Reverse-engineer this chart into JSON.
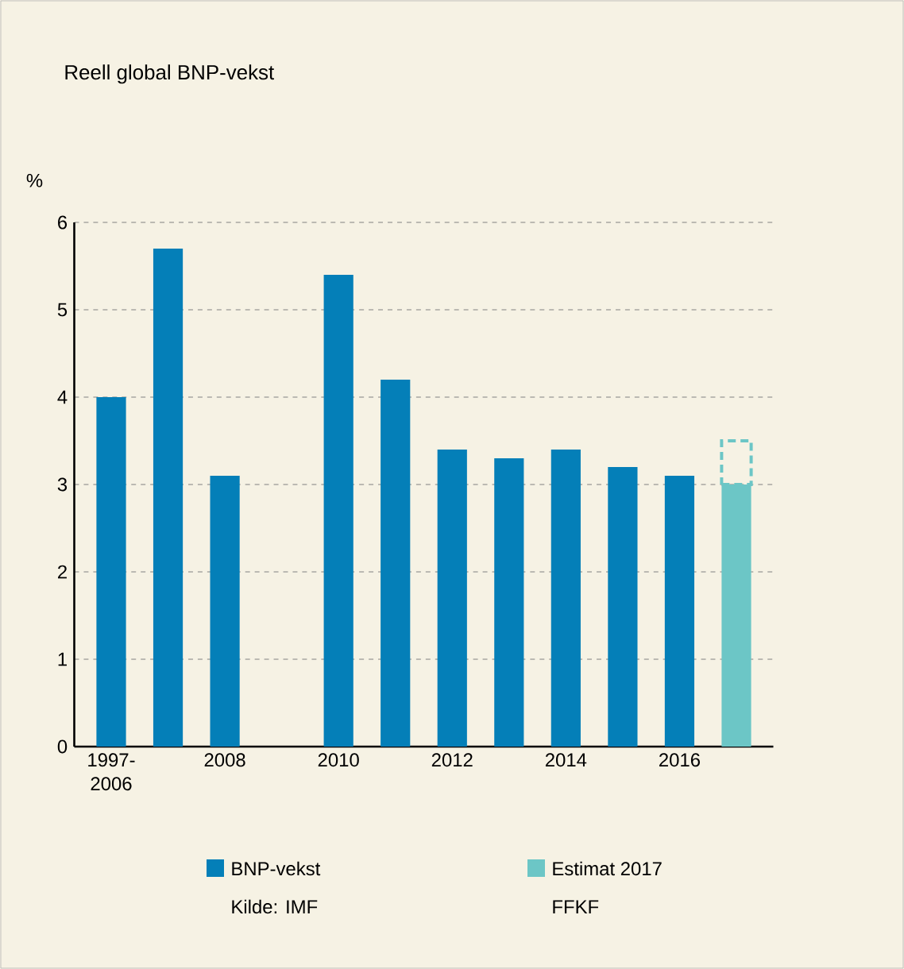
{
  "chart_data": {
    "type": "bar",
    "title": "Reell global BNP-vekst",
    "ylabel": "%",
    "categories": [
      "1997-2006",
      null,
      "2008",
      null,
      "2010",
      null,
      "2012",
      null,
      "2014",
      null,
      "2016",
      null
    ],
    "series": [
      {
        "name": "BNP-vekst",
        "color": "#047fb8",
        "values": [
          4.0,
          5.7,
          3.1,
          null,
          5.4,
          4.2,
          3.4,
          3.3,
          3.4,
          3.2,
          3.1,
          null
        ]
      },
      {
        "name": "Estimat 2017",
        "color": "#6cc6c6",
        "values": [
          null,
          null,
          null,
          null,
          null,
          null,
          null,
          null,
          null,
          null,
          null,
          3.0
        ]
      },
      {
        "color": "#6cc6c6",
        "line_style": "dashed",
        "values": [
          null,
          null,
          null,
          null,
          null,
          null,
          null,
          null,
          null,
          null,
          null,
          0.5
        ]
      }
    ],
    "stacked": true,
    "ylim": [
      0,
      6
    ],
    "yticks": [
      0,
      1,
      2,
      3,
      4,
      5,
      6
    ],
    "grid": "y",
    "legend": "bottom",
    "annotations": [
      "Kilde: IMF",
      "FFKF"
    ]
  }
}
